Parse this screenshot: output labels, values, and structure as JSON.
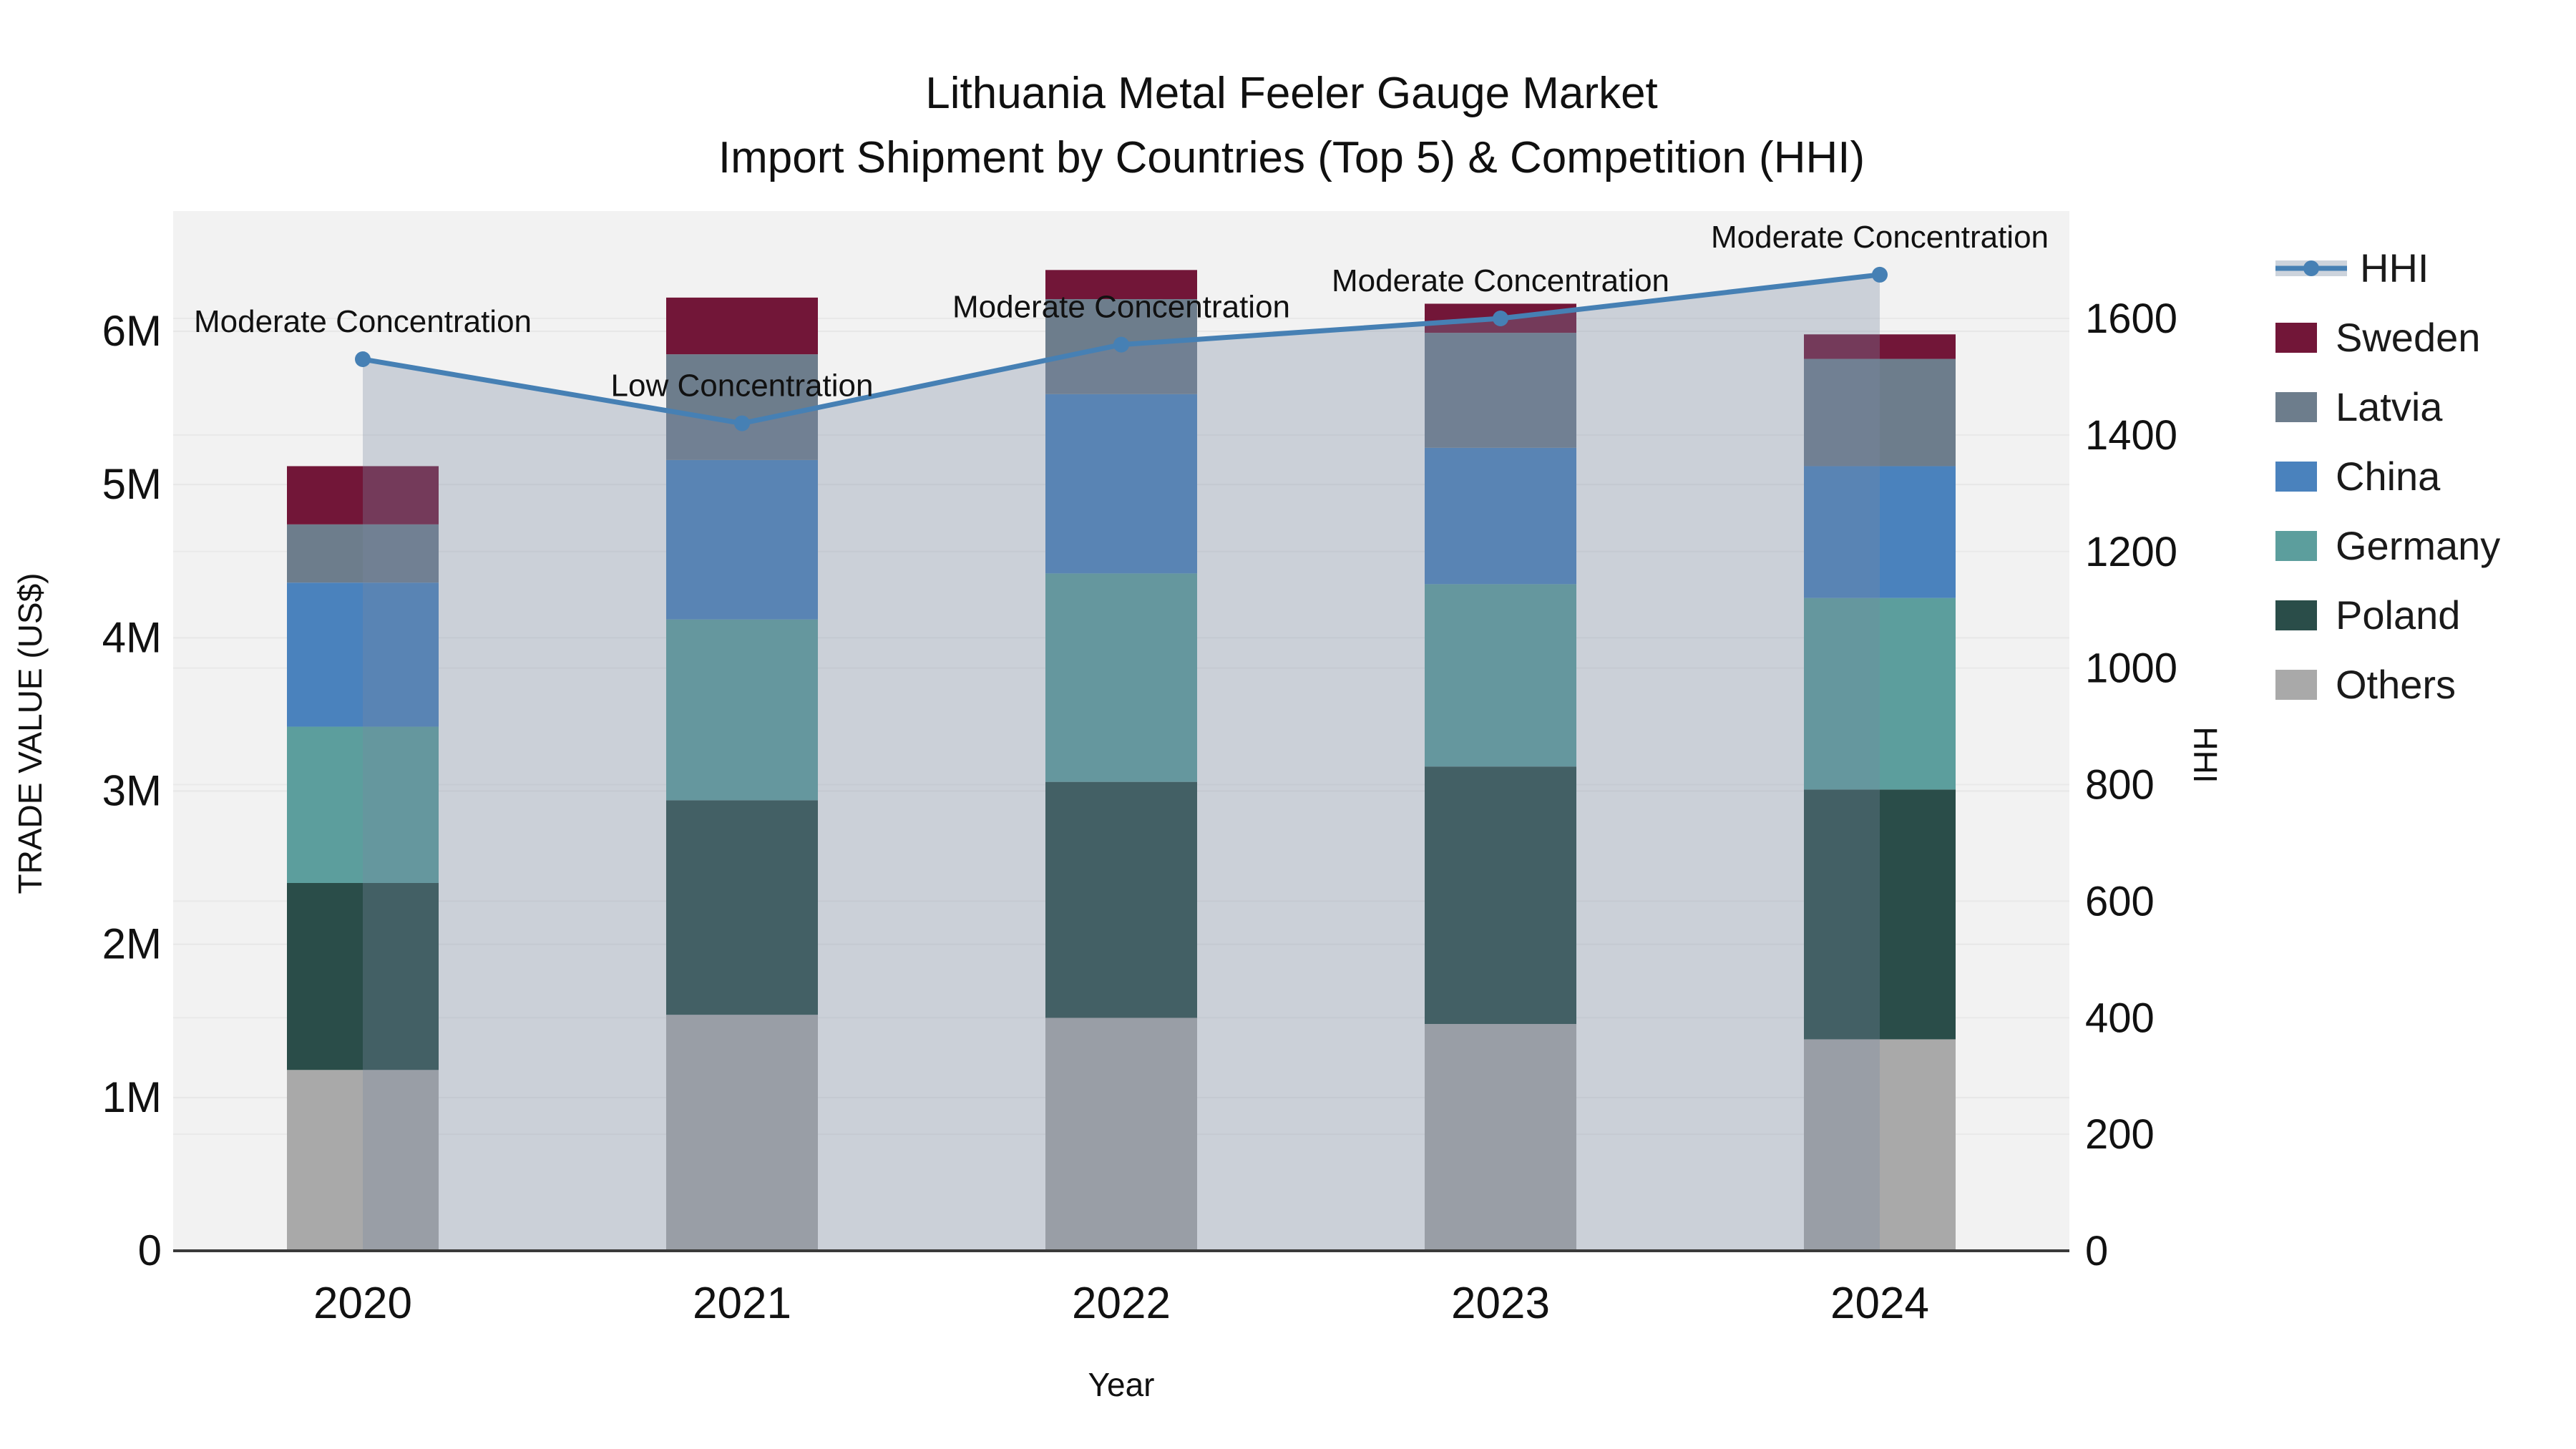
{
  "title": {
    "line1": "Lithuania Metal Feeler Gauge Market",
    "line2": "Import Shipment by Countries (Top 5) & Competition (HHI)"
  },
  "chart_data": {
    "type": "bar+line",
    "subtype": "stacked bars (left axis, trade value M US$) with HHI line + shaded area (right axis)",
    "categories": [
      "2020",
      "2021",
      "2022",
      "2023",
      "2024"
    ],
    "bar_unit": "millions US$",
    "series": [
      {
        "name": "Others",
        "color": "#a9a9a9",
        "values": [
          1.18,
          1.54,
          1.52,
          1.48,
          1.38
        ]
      },
      {
        "name": "Poland",
        "color": "#2a4d49",
        "values": [
          1.22,
          1.4,
          1.54,
          1.68,
          1.63
        ]
      },
      {
        "name": "Germany",
        "color": "#5c9e9d",
        "values": [
          1.02,
          1.18,
          1.36,
          1.19,
          1.25
        ]
      },
      {
        "name": "China",
        "color": "#4a82bd",
        "values": [
          0.94,
          1.04,
          1.17,
          0.89,
          0.86
        ]
      },
      {
        "name": "Latvia",
        "color": "#6d7d8c",
        "values": [
          0.38,
          0.69,
          0.62,
          0.75,
          0.7
        ]
      },
      {
        "name": "Sweden",
        "color": "#721638",
        "values": [
          0.38,
          0.37,
          0.19,
          0.19,
          0.16
        ]
      }
    ],
    "line_series": {
      "name": "HHI",
      "color": "#4680b4",
      "area_fill": "rgba(122,137,163,0.32)",
      "values": [
        1530,
        1420,
        1555,
        1600,
        1675
      ]
    },
    "annotations": [
      "Moderate Concentration",
      "Low Concentration",
      "Moderate Concentration",
      "Moderate Concentration",
      "Moderate Concentration"
    ],
    "x_axis": {
      "title": "Year"
    },
    "y_left": {
      "title": "TRADE VALUE (US$)",
      "tick_values": [
        0,
        1,
        2,
        3,
        4,
        5,
        6
      ],
      "tick_labels": [
        "0",
        "1M",
        "2M",
        "3M",
        "4M",
        "5M",
        "6M"
      ],
      "range_max": 6.78
    },
    "y_right": {
      "title": "HHI",
      "tick_values": [
        0,
        200,
        400,
        600,
        800,
        1000,
        1200,
        1400,
        1600
      ],
      "tick_labels": [
        "0",
        "200",
        "400",
        "600",
        "800",
        "1000",
        "1200",
        "1400",
        "1600"
      ],
      "range_max": 1784
    },
    "legend": [
      "HHI",
      "Sweden",
      "Latvia",
      "China",
      "Germany",
      "Poland",
      "Others"
    ],
    "legend_hhi_band_color": "#ccd3dc",
    "colors": {
      "plot_background": "#f2f2f2",
      "gridline": "#e7e7e7",
      "axis_line": "#3a3a3a",
      "text": "#111111"
    }
  }
}
